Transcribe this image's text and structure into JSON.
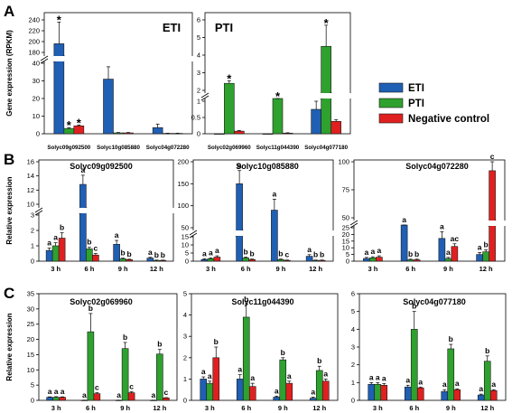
{
  "figure": {
    "legend": [
      {
        "name": "ETI",
        "color": "#1f5fb4"
      },
      {
        "name": "PTI",
        "color": "#2ea12e"
      },
      {
        "name": "Negative control",
        "color": "#e02020"
      }
    ]
  },
  "chart_data": [
    {
      "type": "bar",
      "panel": "A",
      "title": "ETI",
      "ylabel": "Gene expression (RPKM)",
      "categories": [
        "Solyc09g092500",
        "Solyc10g085880",
        "Solyc04g072280"
      ],
      "y_broken": true,
      "yticks_lower": [
        "0",
        "10",
        "20",
        "30",
        "40"
      ],
      "yticks_upper": [
        "180",
        "200",
        "220",
        "240"
      ],
      "series": [
        {
          "name": "ETI",
          "values": [
            196,
            31,
            3.5
          ],
          "errors": [
            40,
            7,
            2
          ]
        },
        {
          "name": "PTI",
          "values": [
            3,
            0.5,
            0.2
          ],
          "errors": [
            0.5,
            0.2,
            0.1
          ]
        },
        {
          "name": "Negative control",
          "values": [
            4.5,
            0.5,
            0.2
          ],
          "errors": [
            0.5,
            0.2,
            0.1
          ]
        }
      ],
      "labels": [
        [
          "*",
          "",
          ""
        ],
        [
          "*",
          "",
          ""
        ],
        [
          "*",
          "",
          ""
        ]
      ]
    },
    {
      "type": "bar",
      "panel": "A",
      "title": "PTI",
      "categories": [
        "Solyc02g069960",
        "Solyc11g044390",
        "Solyc04g077180"
      ],
      "y_broken": true,
      "yticks_lower": [
        "0",
        "0.5",
        "1"
      ],
      "yticks_upper": [
        "2",
        "3",
        "4",
        "5",
        "6"
      ],
      "series": [
        {
          "name": "ETI",
          "values": [
            0,
            0,
            0.75
          ],
          "errors": [
            0,
            0,
            0.25
          ]
        },
        {
          "name": "PTI",
          "values": [
            2.4,
            1.2,
            4.5
          ],
          "errors": [
            0.15,
            0.35,
            1.2
          ]
        },
        {
          "name": "Negative control",
          "values": [
            0.08,
            0.02,
            0.38
          ],
          "errors": [
            0.02,
            0.01,
            0.05
          ]
        }
      ],
      "labels": [
        [
          "",
          "",
          ""
        ],
        [
          "*",
          "*",
          "*"
        ],
        [
          "",
          "",
          ""
        ]
      ]
    },
    {
      "type": "bar",
      "panel": "B",
      "title": "Solyc09g092500",
      "ylabel": "Relative expression",
      "categories": [
        "3 h",
        "6 h",
        "9 h",
        "12 h"
      ],
      "y_broken": true,
      "yticks_lower": [
        "0",
        "1",
        "2",
        "3"
      ],
      "yticks_upper": [
        "10",
        "12",
        "14",
        "16"
      ],
      "series": [
        {
          "name": "ETI",
          "values": [
            0.7,
            12.8,
            1.1,
            0.2
          ],
          "errors": [
            0.15,
            1.3,
            0.25,
            0.05
          ]
        },
        {
          "name": "PTI",
          "values": [
            1.0,
            0.8,
            0.15,
            0.05
          ],
          "errors": [
            0.2,
            0.1,
            0.05,
            0.02
          ]
        },
        {
          "name": "Negative control",
          "values": [
            1.5,
            0.4,
            0.1,
            0.05
          ],
          "errors": [
            0.35,
            0.1,
            0.03,
            0.02
          ]
        }
      ],
      "labels": [
        [
          "a",
          "a",
          "a",
          "a"
        ],
        [
          "a",
          "b",
          "b",
          "b"
        ],
        [
          "b",
          "c",
          "b",
          "b"
        ]
      ]
    },
    {
      "type": "bar",
      "panel": "B",
      "title": "Solyc10g085880",
      "categories": [
        "3 h",
        "6 h",
        "9 h",
        "12 h"
      ],
      "y_broken": true,
      "yticks_lower": [
        "0",
        "5",
        "10",
        "15"
      ],
      "yticks_upper": [
        "50",
        "100",
        "150",
        "200"
      ],
      "series": [
        {
          "name": "ETI",
          "values": [
            1,
            150,
            90,
            3
          ],
          "errors": [
            0.5,
            30,
            25,
            1
          ]
        },
        {
          "name": "PTI",
          "values": [
            1.5,
            2,
            1,
            0.5
          ],
          "errors": [
            0.5,
            0.5,
            0.3,
            0.2
          ]
        },
        {
          "name": "Negative control",
          "values": [
            2.5,
            1,
            0.5,
            0.5
          ],
          "errors": [
            0.8,
            0.3,
            0.2,
            0.2
          ]
        }
      ],
      "labels": [
        [
          "a",
          "a",
          "a",
          "a"
        ],
        [
          "a",
          "b",
          "b",
          "b"
        ],
        [
          "a",
          "b",
          "c",
          "b"
        ]
      ]
    },
    {
      "type": "bar",
      "panel": "B",
      "title": "Solyc04g072280",
      "categories": [
        "3 h",
        "6 h",
        "9 h",
        "12 h"
      ],
      "y_broken": true,
      "yticks_lower": [
        "0",
        "5",
        "10",
        "15",
        "20",
        "25"
      ],
      "yticks_upper": [
        "50",
        "75",
        "100"
      ],
      "series": [
        {
          "name": "ETI",
          "values": [
            2,
            35,
            17,
            5
          ],
          "errors": [
            0.8,
            10,
            5,
            1.5
          ]
        },
        {
          "name": "PTI",
          "values": [
            2.5,
            1,
            2,
            7
          ],
          "errors": [
            0.8,
            0.5,
            0.8,
            1.5
          ]
        },
        {
          "name": "Negative control",
          "values": [
            3,
            1,
            11,
            92
          ],
          "errors": [
            1,
            0.5,
            2,
            15
          ]
        }
      ],
      "labels": [
        [
          "a",
          "a",
          "a",
          "a"
        ],
        [
          "a",
          "b",
          "a",
          "b"
        ],
        [
          "a",
          "b",
          "ac",
          "c"
        ]
      ]
    },
    {
      "type": "bar",
      "panel": "C",
      "title": "Solyc02g069960",
      "ylabel": "Relative expression",
      "categories": [
        "3 h",
        "6 h",
        "9 h",
        "12 h"
      ],
      "ylim": [
        0,
        35
      ],
      "yticks": [
        "0",
        "5",
        "10",
        "15",
        "20",
        "25",
        "30",
        "35"
      ],
      "series": [
        {
          "name": "ETI",
          "values": [
            1,
            0.05,
            0.05,
            0.05
          ],
          "errors": [
            0.15,
            0.02,
            0.02,
            0.02
          ]
        },
        {
          "name": "PTI",
          "values": [
            1,
            22.5,
            17,
            15.2
          ],
          "errors": [
            0.2,
            6,
            2,
            1.5
          ]
        },
        {
          "name": "Negative control",
          "values": [
            1,
            2.2,
            2.5,
            0.8
          ],
          "errors": [
            0.15,
            0.3,
            0.3,
            0.1
          ]
        }
      ],
      "labels": [
        [
          "a",
          "a",
          "a",
          "a"
        ],
        [
          "a",
          "b",
          "b",
          "b"
        ],
        [
          "a",
          "c",
          "c",
          "c"
        ]
      ]
    },
    {
      "type": "bar",
      "panel": "C",
      "title": "Solyc11g044390",
      "categories": [
        "3 h",
        "6 h",
        "9 h",
        "12 h"
      ],
      "ylim": [
        0,
        5
      ],
      "yticks": [
        "0",
        "1",
        "2",
        "3",
        "4",
        "5"
      ],
      "series": [
        {
          "name": "ETI",
          "values": [
            1.0,
            1.0,
            0.15,
            0.1
          ],
          "errors": [
            0.1,
            0.2,
            0.05,
            0.05
          ]
        },
        {
          "name": "PTI",
          "values": [
            0.8,
            3.9,
            1.9,
            1.4
          ],
          "errors": [
            0.1,
            0.6,
            0.1,
            0.2
          ]
        },
        {
          "name": "Negative control",
          "values": [
            2.0,
            0.65,
            0.8,
            0.9
          ],
          "errors": [
            0.5,
            0.15,
            0.1,
            0.1
          ]
        }
      ],
      "labels": [
        [
          "a",
          "a",
          "a",
          "a"
        ],
        [
          "a",
          "b",
          "b",
          "b"
        ],
        [
          "b",
          "a",
          "a",
          "a"
        ]
      ]
    },
    {
      "type": "bar",
      "panel": "C",
      "title": "Solyc04g077180",
      "categories": [
        "3 h",
        "6 h",
        "9 h",
        "12 h"
      ],
      "ylim": [
        0,
        6
      ],
      "yticks": [
        "0",
        "1",
        "2",
        "3",
        "4",
        "5",
        "6"
      ],
      "series": [
        {
          "name": "ETI",
          "values": [
            0.9,
            0.75,
            0.5,
            0.3
          ],
          "errors": [
            0.1,
            0.1,
            0.1,
            0.05
          ]
        },
        {
          "name": "PTI",
          "values": [
            0.9,
            4.0,
            2.9,
            2.2
          ],
          "errors": [
            0.1,
            1.0,
            0.25,
            0.3
          ]
        },
        {
          "name": "Negative control",
          "values": [
            0.85,
            0.7,
            0.6,
            0.55
          ],
          "errors": [
            0.1,
            0.05,
            0.05,
            0.05
          ]
        }
      ],
      "labels": [
        [
          "a",
          "a",
          "a",
          "a"
        ],
        [
          "a",
          "b",
          "b",
          "b"
        ],
        [
          "a",
          "a",
          "a",
          "a"
        ]
      ]
    }
  ]
}
